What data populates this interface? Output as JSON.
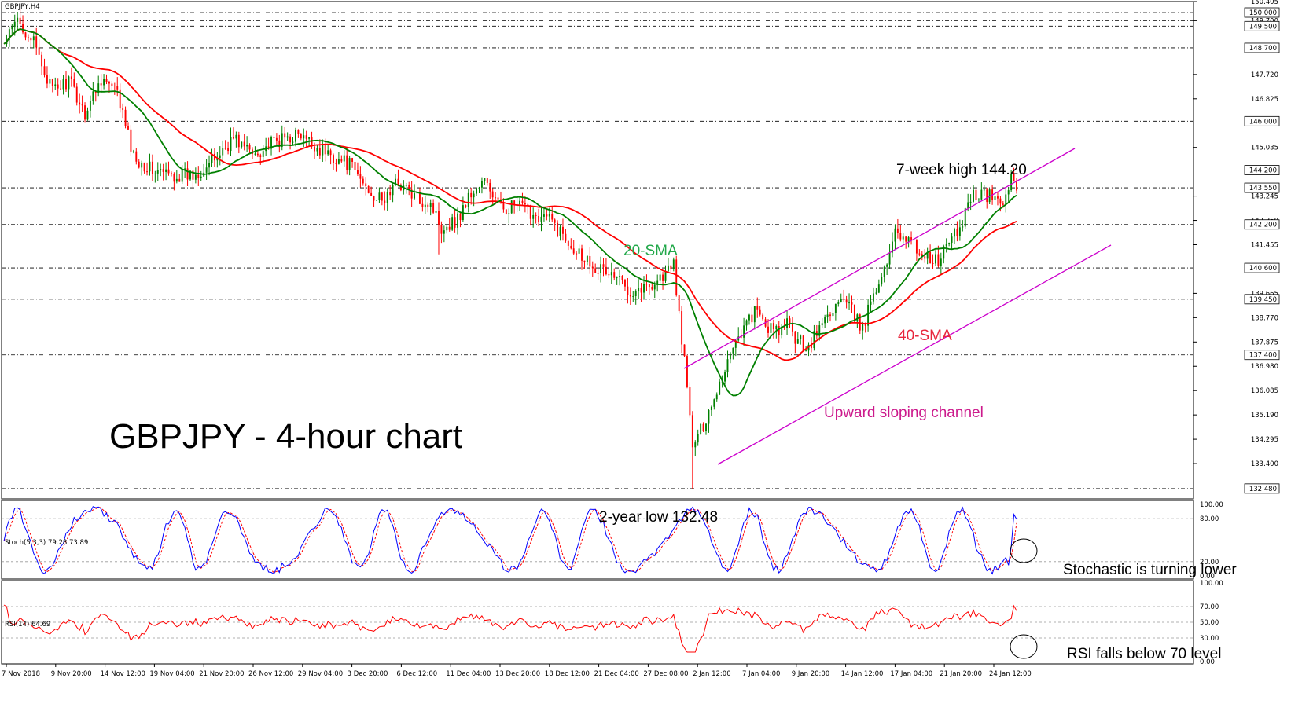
{
  "chart_data": {
    "type": "candlestick",
    "symbol_label": "GBPJPY,H4",
    "title": "GBPJPY - 4-hour chart",
    "price_axis": {
      "ylim": [
        132.1,
        150.405
      ],
      "tick_labels": [
        "150.405",
        "149.700",
        "147.720",
        "146.825",
        "145.035",
        "143.245",
        "142.350",
        "141.455",
        "139.665",
        "138.770",
        "137.875",
        "136.980",
        "136.085",
        "135.190",
        "134.295",
        "133.400"
      ],
      "level_labels": [
        "150.000",
        "149.500",
        "148.700",
        "146.000",
        "144.200",
        "143.550",
        "142.200",
        "140.600",
        "139.450",
        "137.400",
        "132.480"
      ],
      "levels": [
        150.0,
        149.7,
        149.5,
        148.7,
        146.0,
        144.2,
        143.55,
        142.2,
        140.6,
        139.45,
        137.4,
        132.48
      ]
    },
    "x_labels": [
      "7 Nov 2018",
      "9 Nov 20:00",
      "14 Nov 12:00",
      "19 Nov 04:00",
      "21 Nov 20:00",
      "26 Nov 12:00",
      "29 Nov 04:00",
      "3 Dec 20:00",
      "6 Dec 12:00",
      "11 Dec 04:00",
      "13 Dec 20:00",
      "18 Dec 12:00",
      "21 Dec 04:00",
      "27 Dec 08:00",
      "2 Jan 12:00",
      "7 Jan 04:00",
      "9 Jan 20:00",
      "14 Jan 12:00",
      "17 Jan 04:00",
      "21 Jan 20:00",
      "24 Jan 12:00"
    ],
    "price_path": [
      [
        0,
        148.8
      ],
      [
        5,
        149.7
      ],
      [
        10,
        149.1
      ],
      [
        18,
        147.1
      ],
      [
        24,
        147.5
      ],
      [
        30,
        146.3
      ],
      [
        36,
        147.6
      ],
      [
        42,
        147.0
      ],
      [
        48,
        144.7
      ],
      [
        55,
        144.2
      ],
      [
        62,
        144.0
      ],
      [
        70,
        144.0
      ],
      [
        78,
        144.6
      ],
      [
        85,
        145.4
      ],
      [
        92,
        144.8
      ],
      [
        100,
        145.2
      ],
      [
        108,
        145.5
      ],
      [
        115,
        145.1
      ],
      [
        122,
        144.7
      ],
      [
        128,
        144.4
      ],
      [
        134,
        143.6
      ],
      [
        140,
        143.0
      ],
      [
        146,
        143.8
      ],
      [
        152,
        143.2
      ],
      [
        158,
        143.0
      ],
      [
        162,
        142.1
      ],
      [
        168,
        142.4
      ],
      [
        172,
        143.2
      ],
      [
        178,
        143.8
      ],
      [
        184,
        142.8
      ],
      [
        190,
        142.9
      ],
      [
        196,
        142.6
      ],
      [
        202,
        142.4
      ],
      [
        208,
        141.7
      ],
      [
        214,
        141.1
      ],
      [
        220,
        140.6
      ],
      [
        226,
        140.3
      ],
      [
        232,
        139.8
      ],
      [
        238,
        139.9
      ],
      [
        244,
        140.3
      ],
      [
        248,
        140.7
      ],
      [
        251,
        138.0
      ],
      [
        253,
        136.2
      ],
      [
        255,
        133.9
      ],
      [
        258,
        134.6
      ],
      [
        262,
        135.6
      ],
      [
        266,
        136.6
      ],
      [
        270,
        137.8
      ],
      [
        274,
        138.4
      ],
      [
        278,
        139.0
      ],
      [
        282,
        138.5
      ],
      [
        286,
        138.2
      ],
      [
        290,
        138.5
      ],
      [
        294,
        137.9
      ],
      [
        298,
        137.7
      ],
      [
        302,
        138.4
      ],
      [
        306,
        139.0
      ],
      [
        310,
        139.4
      ],
      [
        314,
        139.0
      ],
      [
        318,
        138.3
      ],
      [
        322,
        139.8
      ],
      [
        326,
        140.4
      ],
      [
        330,
        142.1
      ],
      [
        334,
        141.7
      ],
      [
        338,
        141.3
      ],
      [
        342,
        141.0
      ],
      [
        346,
        140.8
      ],
      [
        350,
        141.6
      ],
      [
        354,
        142.0
      ],
      [
        358,
        143.3
      ],
      [
        362,
        143.3
      ],
      [
        366,
        143.2
      ],
      [
        370,
        143.0
      ],
      [
        373,
        144.0
      ],
      [
        375,
        143.7
      ]
    ],
    "indicators": {
      "sma20": {
        "label": "20-SMA",
        "color": "#008000"
      },
      "sma40": {
        "label": "40-SMA",
        "color": "#ff0000"
      },
      "stochastic": {
        "label": "Stoch(5,3,3) 79.28 73.89",
        "main_last": 79.28,
        "signal_last": 73.89,
        "levels": [
          80,
          20
        ],
        "ylim": [
          0,
          100
        ],
        "tick_labels": [
          "100.00",
          "80.00",
          "20.00",
          "0.00"
        ]
      },
      "rsi": {
        "label": "RSI(14) 64.69",
        "last": 64.69,
        "levels": [
          70,
          50,
          30
        ],
        "ylim": [
          0,
          100
        ],
        "tick_labels": [
          "100.00",
          "70.00",
          "50.00",
          "30.00",
          "0.00"
        ]
      }
    },
    "annotations": {
      "high": "7-week high 144.20",
      "low": "2-year low 132.48",
      "channel": "Upward sloping channel",
      "stoch_note": "Stochastic is turning lower",
      "rsi_note": "RSI falls below 70 level"
    },
    "colors": {
      "candle_up": "#008000",
      "candle_down": "#ff0000",
      "channel": "#cc00cc",
      "stoch_main": "#0000ff",
      "stoch_signal": "#ff0000",
      "rsi": "#ff0000"
    }
  }
}
